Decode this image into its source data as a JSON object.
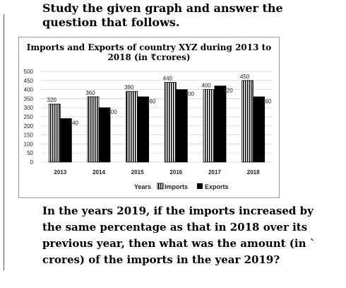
{
  "question": {
    "intro": "Study the given graph and answer the question that follows.",
    "text": "In the years 2019, if the imports increased by the same percentage as that in 2018 over its previous year, then what was the amount (in ` crores) of the imports in the year 2019?"
  },
  "chart_data": {
    "type": "bar",
    "title_line1": "Imports and Exports of country XYZ during 2013 to",
    "title_line2": "2018 (in ₹crores)",
    "categories": [
      "2013",
      "2014",
      "2015",
      "2016",
      "2017",
      "2018"
    ],
    "series": [
      {
        "name": "Imports",
        "values": [
          320,
          360,
          390,
          440,
          400,
          450
        ]
      },
      {
        "name": "Exports",
        "values": [
          240,
          300,
          360,
          400,
          420,
          360
        ]
      }
    ],
    "xlabel": "Years",
    "ylabel": "",
    "ylim": [
      0,
      500
    ],
    "yticks": [
      0,
      50,
      100,
      150,
      200,
      250,
      300,
      350,
      400,
      450,
      500
    ],
    "grid": true,
    "legend_placement": "bottom",
    "colors": {
      "imports_stripe": "#000000",
      "exports": "#000000",
      "grid": "#d0d0d0"
    }
  }
}
